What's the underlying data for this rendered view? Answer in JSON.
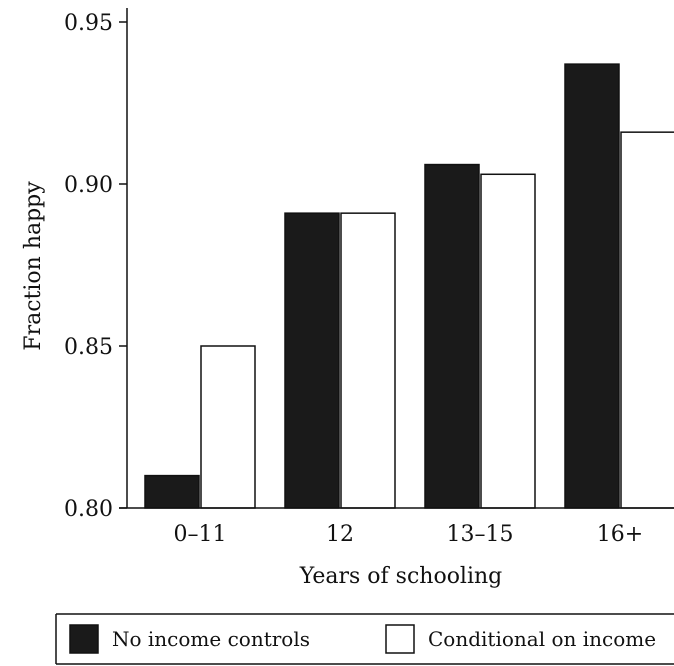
{
  "chart_data": {
    "type": "bar",
    "title": "",
    "xlabel": "Years of schooling",
    "ylabel": "Fraction happy",
    "categories": [
      "0–11",
      "12",
      "13–15",
      "16+"
    ],
    "series": [
      {
        "name": "No income controls",
        "values": [
          0.81,
          0.891,
          0.906,
          0.937
        ],
        "color": "#1a1a1a"
      },
      {
        "name": "Conditional on income",
        "values": [
          0.85,
          0.891,
          0.903,
          0.916
        ],
        "color": "#ffffff"
      }
    ],
    "ylim": [
      0.8,
      0.95
    ],
    "yticks": [
      {
        "value": 0.8,
        "label": "0.80"
      },
      {
        "value": 0.85,
        "label": "0.85"
      },
      {
        "value": 0.9,
        "label": "0.90"
      },
      {
        "value": 0.95,
        "label": "0.95"
      }
    ],
    "grid": false,
    "legend_position": "bottom"
  }
}
